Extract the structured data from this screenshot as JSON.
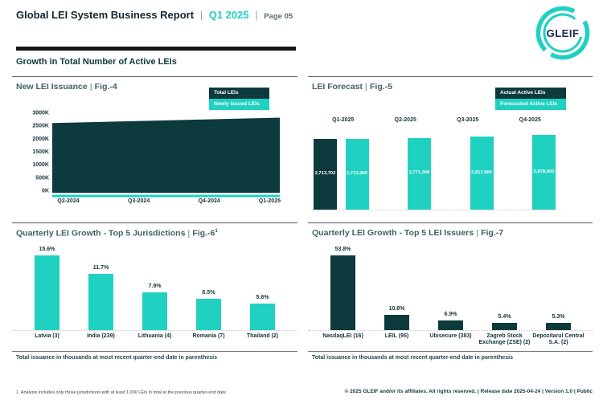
{
  "header": {
    "title": "Global LEI System Business Report",
    "separator": "|",
    "period": "Q1 2025",
    "page": "Page 05",
    "logo_text": "GLEIF"
  },
  "section_title": "Growth in Total Number of Active LEIs",
  "colors": {
    "dark_teal": "#0d3a3c",
    "teal": "#1fd1c1"
  },
  "chart_data": [
    {
      "id": "new-lei-issuance",
      "type": "area",
      "title": "New LEI Issuance",
      "separator": "|",
      "fig_label": "Fig.-4",
      "x": [
        "Q2-2024",
        "Q3-2024",
        "Q4-2024",
        "Q1-2025"
      ],
      "series": [
        {
          "name": "Total LEIs",
          "color": "#0d3a3c",
          "values": [
            2590000,
            2660000,
            2730000,
            2800000
          ]
        },
        {
          "name": "Newly Issued LEIs",
          "color": "#1fd1c1",
          "values": [
            70000,
            70000,
            70000,
            70000
          ]
        }
      ],
      "y_ticks": [
        "0K",
        "500K",
        "1000K",
        "1500K",
        "2000K",
        "2500K",
        "3000K"
      ],
      "ylim": [
        0,
        3000000
      ],
      "legend_position": "top-right",
      "grid": false
    },
    {
      "id": "lei-forecast",
      "type": "bar",
      "title": "LEI Forecast",
      "separator": "|",
      "fig_label": "Fig.-5",
      "categories": [
        "Q1-2025",
        "Q2-2025",
        "Q3-2025",
        "Q4-2025"
      ],
      "series": [
        {
          "name": "Actual Active LEIs",
          "color": "#0d3a3c",
          "values": [
            2713702,
            null,
            null,
            null
          ],
          "labels": [
            "2,713,702",
            null,
            null,
            null
          ]
        },
        {
          "name": "Forecasted Active LEIs",
          "color": "#1fd1c1",
          "values": [
            2713000,
            2771000,
            2817000,
            2878000
          ],
          "labels": [
            "2,713,000",
            "2,771,000",
            "2,817,000",
            "2,878,000"
          ]
        }
      ],
      "legend_position": "top-right",
      "ylim": [
        0,
        2878000
      ]
    },
    {
      "id": "growth-top5-jurisdictions",
      "type": "bar",
      "title": "Quarterly LEI Growth - Top 5 Jurisdictions",
      "separator": "|",
      "fig_label": "Fig.-6",
      "fig_superscript": "1",
      "categories": [
        "Latvia (3)",
        "India (239)",
        "Lithuania (4)",
        "Romania (7)",
        "Thailand (2)"
      ],
      "values": [
        15.6,
        11.7,
        7.9,
        6.5,
        5.6
      ],
      "labels": [
        "15.6%",
        "11.7%",
        "7.9%",
        "6.5%",
        "5.6%"
      ],
      "bar_color": "#1fd1c1",
      "footnote": "Total issuance in thousands at most recent quarter-end date in parenthesis"
    },
    {
      "id": "growth-top5-issuers",
      "type": "bar",
      "title": "Quarterly LEI Growth - Top 5 LEI Issuers",
      "separator": "|",
      "fig_label": "Fig.-7",
      "categories": [
        "NasdaqLEI (16)",
        "LEIL (95)",
        "Ubisecure (383)",
        "Zagreb Stock Exchange (ZSE) (2)",
        "Depozitarul Central S.A. (2)"
      ],
      "values": [
        53.8,
        10.8,
        6.9,
        5.4,
        5.3
      ],
      "labels": [
        "53.8%",
        "10.8%",
        "6.9%",
        "5.4%",
        "5.3%"
      ],
      "bar_color": "#0d3a3c",
      "footnote": "Total issuance in thousands at most recent quarter-end date in parenthesis"
    }
  ],
  "footer": {
    "note": "1. Analysis includes only those jurisdictions with at least 1,000 LEIs in total at the previous quarter-end date.",
    "copyright": "© 2025 GLEIF and/or its affiliates. All rights reserved. | Release date 2025-04-24 | Version 1.0 | Public"
  }
}
